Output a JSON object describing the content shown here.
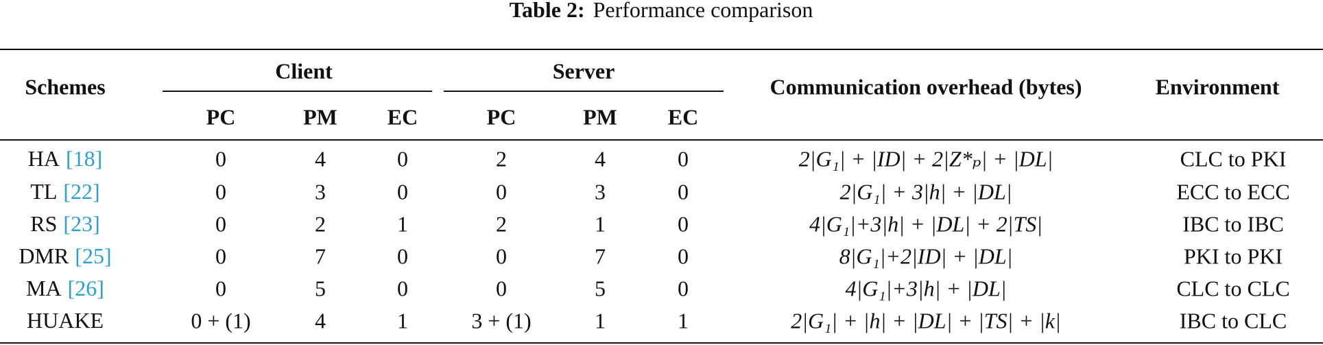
{
  "caption": {
    "label": "Table 2:",
    "text": "Performance comparison"
  },
  "table": {
    "headers": {
      "schemes": "Schemes",
      "client": "Client",
      "server": "Server",
      "overhead": "Communication overhead (bytes)",
      "environment": "Environment",
      "sub": [
        "PC",
        "PM",
        "EC",
        "PC",
        "PM",
        "EC"
      ]
    },
    "rows": [
      {
        "scheme": "HA",
        "ref": "[18]",
        "client": [
          0,
          4,
          0
        ],
        "server": [
          2,
          4,
          0
        ],
        "overhead": "2|G₁| + |ID| + 2|Z*ₚ| + |DL|",
        "environment": "CLC to PKI"
      },
      {
        "scheme": "TL",
        "ref": "[22]",
        "client": [
          0,
          3,
          0
        ],
        "server": [
          0,
          3,
          0
        ],
        "overhead": "2|G₁| + 3|h| + |DL|",
        "environment": "ECC to ECC"
      },
      {
        "scheme": "RS",
        "ref": "[23]",
        "client": [
          0,
          2,
          1
        ],
        "server": [
          2,
          1,
          0
        ],
        "overhead": "4|G₁|+3|h| + |DL| + 2|TS|",
        "environment": "IBC to IBC"
      },
      {
        "scheme": "DMR",
        "ref": "[25]",
        "client": [
          0,
          7,
          0
        ],
        "server": [
          0,
          7,
          0
        ],
        "overhead": "8|G₁|+2|ID| + |DL|",
        "environment": "PKI to PKI"
      },
      {
        "scheme": "MA",
        "ref": "[26]",
        "client": [
          0,
          5,
          0
        ],
        "server": [
          0,
          5,
          0
        ],
        "overhead": "4|G₁|+3|h| + |DL|",
        "environment": "CLC to CLC"
      },
      {
        "scheme": "HUAKE",
        "client": [
          "0 + (1)",
          4,
          1
        ],
        "server": [
          "3 + (1)",
          1,
          1
        ],
        "overhead": "2|G₁| + |h| + |DL| + |TS| + |k|",
        "environment": "IBC to CLC"
      }
    ]
  }
}
